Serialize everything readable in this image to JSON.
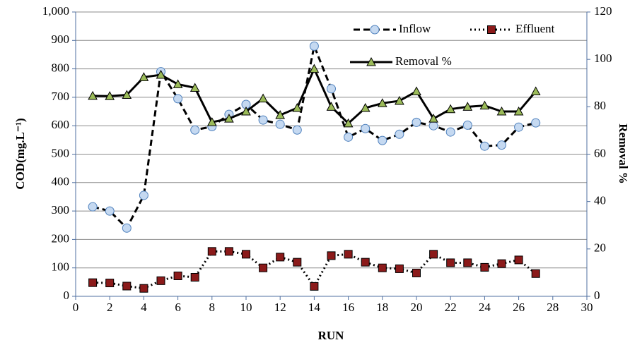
{
  "chart_data": {
    "type": "line",
    "x_label": "RUN",
    "y_label": "COD(mg.L⁻¹)",
    "y2_label": "Removal %",
    "x": [
      1,
      2,
      3,
      4,
      5,
      6,
      7,
      8,
      9,
      10,
      11,
      12,
      13,
      14,
      15,
      16,
      17,
      18,
      19,
      20,
      21,
      22,
      23,
      24,
      25,
      26,
      27
    ],
    "xlim": [
      0,
      30
    ],
    "xticks": [
      0,
      2,
      4,
      6,
      8,
      10,
      12,
      14,
      16,
      18,
      20,
      22,
      24,
      26,
      28,
      30
    ],
    "ylim": [
      0,
      1000
    ],
    "yticks": [
      0,
      100,
      200,
      300,
      400,
      500,
      600,
      700,
      800,
      900,
      {
        "value": 1000,
        "label": "1,000"
      }
    ],
    "y2lim": [
      0,
      120
    ],
    "y2ticks": [
      0,
      20,
      40,
      60,
      80,
      100,
      120
    ],
    "grid": true,
    "series": [
      {
        "name": "Inflow",
        "color": "#c5d9f1",
        "marker": "circle",
        "dash": "dashed",
        "values": [
          315,
          300,
          240,
          355,
          790,
          695,
          585,
          597,
          640,
          675,
          620,
          605,
          585,
          880,
          730,
          560,
          590,
          548,
          570,
          612,
          600,
          578,
          602,
          528,
          532,
          595,
          610
        ]
      },
      {
        "name": "Effluent",
        "color": "#8b1a1a",
        "marker": "square",
        "dash": "dotted",
        "values": [
          48,
          47,
          36,
          28,
          55,
          72,
          67,
          158,
          158,
          148,
          100,
          138,
          120,
          35,
          143,
          148,
          120,
          100,
          97,
          82,
          148,
          118,
          118,
          102,
          115,
          128,
          80
        ]
      },
      {
        "name": "Removal %",
        "color": "#9bbb59",
        "marker": "triangle",
        "dash": "solid",
        "axis": "y2",
        "values": [
          84.6,
          84.5,
          85,
          92.5,
          93.5,
          89.5,
          88,
          73.5,
          75,
          78,
          83.5,
          76.5,
          79.5,
          96,
          80,
          73,
          79.5,
          81.5,
          82.5,
          86.5,
          75,
          79,
          80,
          80.5,
          78,
          78,
          86.5
        ]
      }
    ]
  }
}
